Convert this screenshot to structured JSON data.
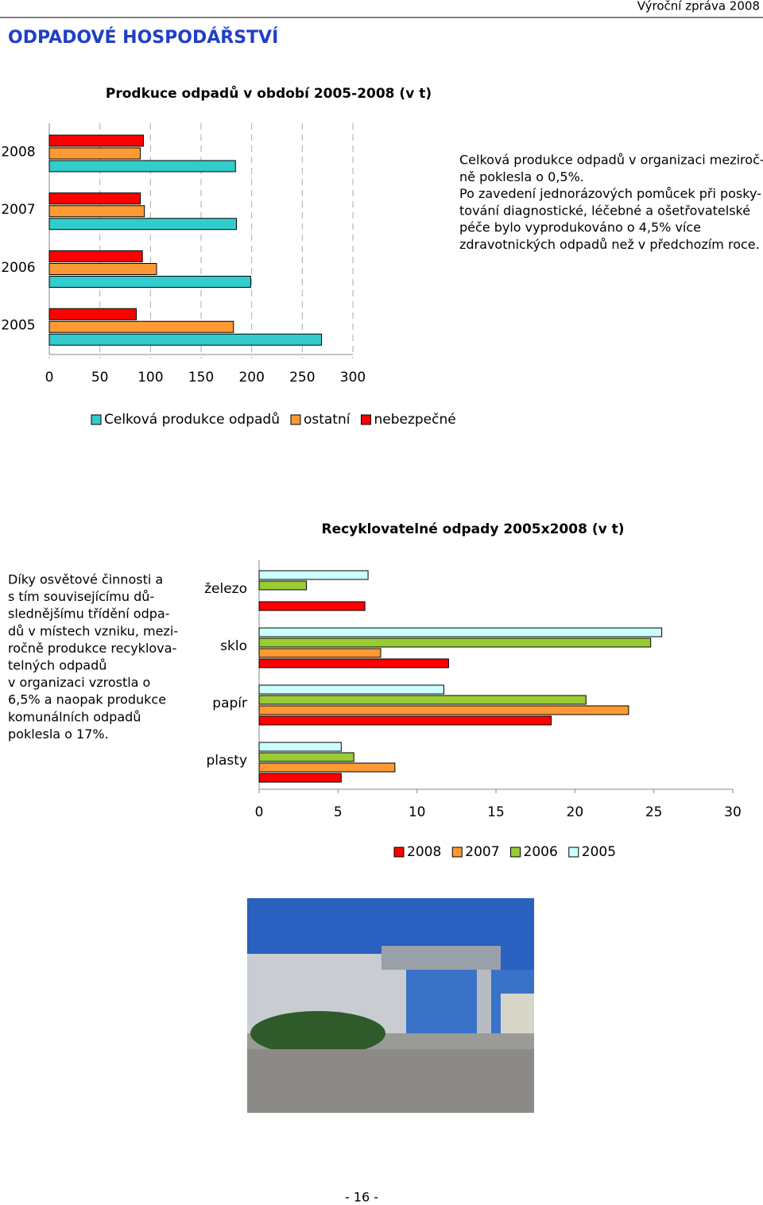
{
  "header": "Výroční zpráva 2008",
  "heading": "ODPADOVÉ HOSPODÁŘSTVÍ",
  "chart_data": [
    {
      "type": "hbar",
      "title": "Prodkuce odpadů v období 2005-2008 (v t)",
      "categories": [
        "2008",
        "2007",
        "2006",
        "2005"
      ],
      "series": [
        {
          "name": "Celková produkce odpadů",
          "color": "#33cccc",
          "values": [
            184,
            185,
            199,
            269
          ]
        },
        {
          "name": "ostatní",
          "color": "#ff9933",
          "values": [
            90,
            94,
            106,
            182
          ]
        },
        {
          "name": "nebezpečné",
          "color": "#ff0000",
          "values": [
            93,
            90,
            92,
            86
          ]
        }
      ],
      "xlim": [
        0,
        300
      ],
      "xticks": [
        0,
        50,
        100,
        150,
        200,
        250,
        300
      ],
      "grid": true
    },
    {
      "type": "hbar",
      "title": "Recyklovatelné odpady 2005x2008 (v t)",
      "categories": [
        "železo",
        "sklo",
        "papír",
        "plasty"
      ],
      "series": [
        {
          "name": "2008",
          "color": "#ff0000",
          "values": [
            6.7,
            12.0,
            18.5,
            5.2
          ]
        },
        {
          "name": "2007",
          "color": "#ff9933",
          "values": [
            null,
            7.7,
            23.4,
            8.6
          ]
        },
        {
          "name": "2006",
          "color": "#99cc33",
          "values": [
            3.0,
            24.8,
            20.7,
            6.0
          ]
        },
        {
          "name": "2005",
          "color": "#ccffff",
          "values": [
            6.9,
            25.5,
            11.7,
            5.2
          ]
        }
      ],
      "xlim": [
        0,
        30
      ],
      "xticks": [
        0,
        5,
        10,
        15,
        20,
        25,
        30
      ],
      "grid": false
    }
  ],
  "note1": [
    "Celková produkce odpadů v organizaci meziroč-",
    "ně poklesla o 0,5%.",
    "Po zavedení jednorázových pomůcek  při posky-",
    "tování diagnostické, léčebné a ošetřovatelské",
    "péče bylo vyprodukováno o 4,5% více",
    "zdravotnických odpadů než v předchozím roce."
  ],
  "note2": [
    "Díky osvětové činnosti a",
    "s tím souvisejícímu dů-",
    "slednějšímu třídění odpa-",
    "dů v místech vzniku, mezi-",
    "ročně produkce recyklova-",
    "telných odpadů",
    "v organizaci vzrostla o",
    "6,5% a naopak produkce",
    "komunálních odpadů",
    "poklesla o 17%."
  ],
  "footer": "- 16 -"
}
